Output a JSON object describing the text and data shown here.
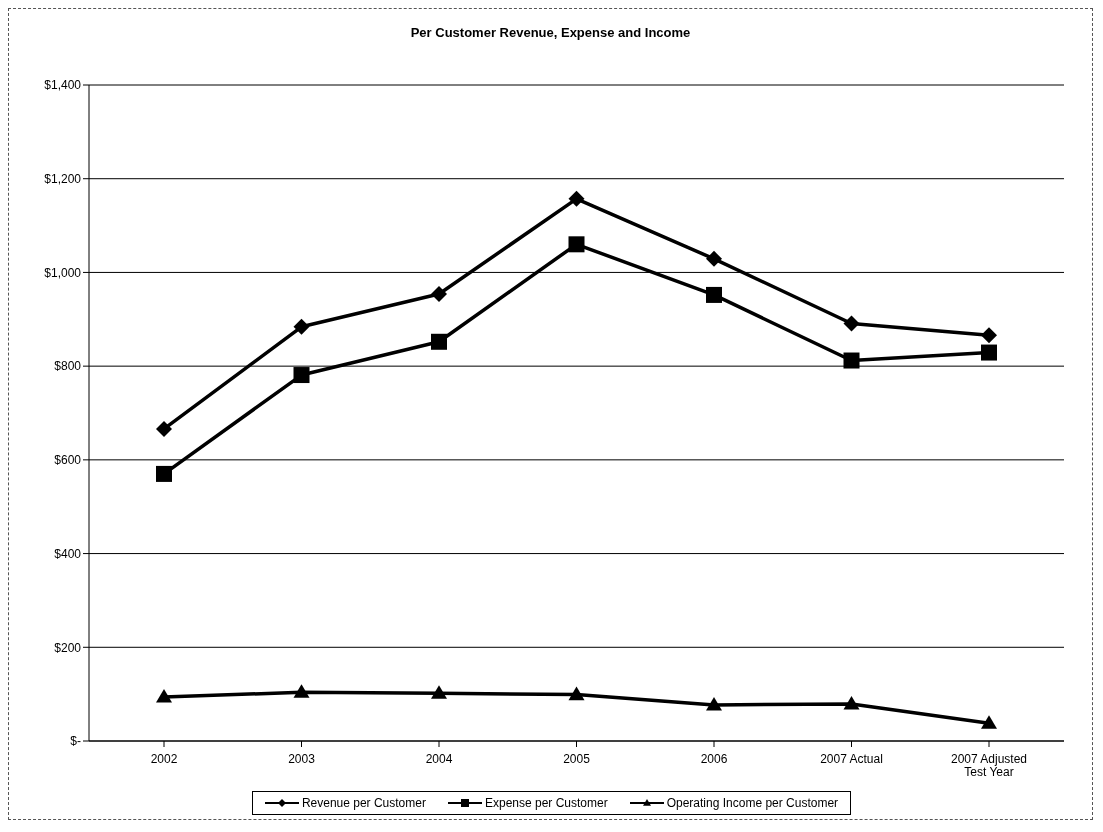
{
  "chart_data": {
    "type": "line",
    "title": "Per Customer Revenue, Expense and Income",
    "categories": [
      "2002",
      "2003",
      "2004",
      "2005",
      "2006",
      "2007 Actual",
      "2007 Adjusted Test Year"
    ],
    "series": [
      {
        "name": "Revenue per Customer",
        "color": "#000000",
        "marker": "diamond",
        "values": [
          666,
          884,
          954,
          1157,
          1029,
          891,
          866
        ]
      },
      {
        "name": "Expense per Customer",
        "color": "#000000",
        "marker": "square",
        "values": [
          570,
          781,
          852,
          1060,
          952,
          812,
          829
        ]
      },
      {
        "name": "Operating Income per Customer",
        "color": "#000000",
        "marker": "triangle",
        "values": [
          94,
          104,
          102,
          99,
          77,
          79,
          38
        ]
      }
    ],
    "ylim": [
      0,
      1400
    ],
    "yticks": [
      {
        "value": 0,
        "label": "$-"
      },
      {
        "value": 200,
        "label": "$200"
      },
      {
        "value": 400,
        "label": "$400"
      },
      {
        "value": 600,
        "label": "$600"
      },
      {
        "value": 800,
        "label": "$800"
      },
      {
        "value": 1000,
        "label": "$1,000"
      },
      {
        "value": 1200,
        "label": "$1,200"
      },
      {
        "value": 1400,
        "label": "$1,400"
      }
    ],
    "grid": "y",
    "legend": "bottom",
    "line_style": "solid"
  }
}
